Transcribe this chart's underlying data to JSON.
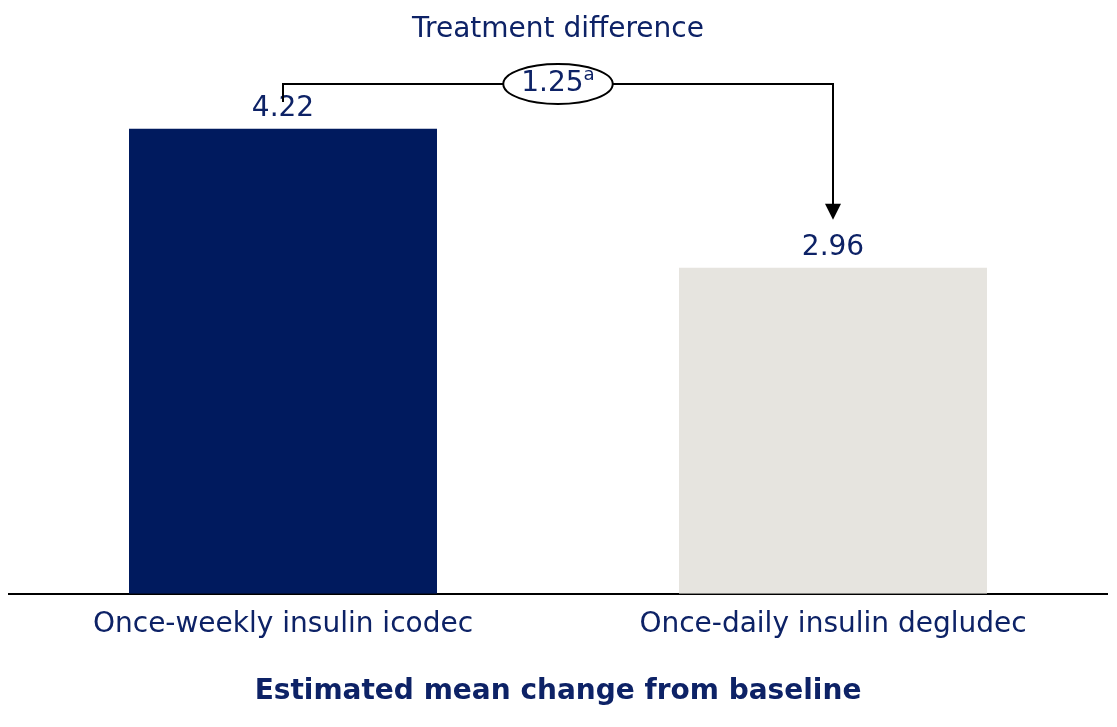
{
  "chart_data": {
    "type": "bar",
    "xlabel": "Estimated mean change from baseline",
    "categories": [
      "Once-weekly insulin icodec",
      "Once-daily insulin degludec"
    ],
    "values": [
      4.22,
      2.96
    ],
    "colors": [
      "#001a5e",
      "#e6e4df"
    ],
    "data_labels": true,
    "grid": false,
    "legend": false,
    "tick_labels": "x",
    "annotations": [
      "Treatment difference",
      "1.25$^{a}$"
    ]
  }
}
